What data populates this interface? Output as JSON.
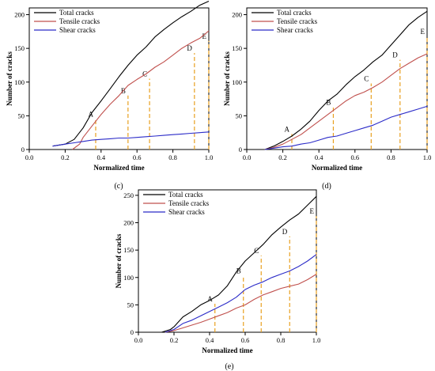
{
  "chart_data": [
    {
      "type": "line",
      "panel_label": "(c)",
      "xlabel": "Normalized time",
      "ylabel": "Number of cracks",
      "xlim": [
        0.0,
        1.0
      ],
      "ylim": [
        0,
        210
      ],
      "xticks": [
        "0.0",
        "0.2",
        "0.4",
        "0.6",
        "0.8",
        "1.0"
      ],
      "yticks": [
        "0",
        "50",
        "100",
        "150",
        "200"
      ],
      "legend_position": "top-left",
      "series": [
        {
          "name": "Total cracks",
          "color": "#000000",
          "x": [
            0.13,
            0.2,
            0.25,
            0.3,
            0.35,
            0.4,
            0.45,
            0.5,
            0.55,
            0.6,
            0.65,
            0.7,
            0.75,
            0.8,
            0.85,
            0.9,
            0.95,
            1.0
          ],
          "y": [
            5,
            8,
            15,
            32,
            55,
            72,
            90,
            108,
            125,
            140,
            152,
            167,
            178,
            188,
            197,
            205,
            214,
            220
          ]
        },
        {
          "name": "Tensile cracks",
          "color": "#c0504d",
          "x": [
            0.24,
            0.28,
            0.3,
            0.35,
            0.4,
            0.45,
            0.5,
            0.55,
            0.6,
            0.65,
            0.7,
            0.75,
            0.8,
            0.85,
            0.9,
            0.95,
            1.0
          ],
          "y": [
            0,
            8,
            18,
            35,
            52,
            67,
            80,
            95,
            104,
            112,
            122,
            130,
            140,
            150,
            158,
            165,
            176
          ]
        },
        {
          "name": "Shear cracks",
          "color": "#2b2bc8",
          "x": [
            0.13,
            0.2,
            0.25,
            0.3,
            0.35,
            0.4,
            0.45,
            0.5,
            0.55,
            0.6,
            0.65,
            0.7,
            0.75,
            0.8,
            0.85,
            0.9,
            0.95,
            1.0
          ],
          "y": [
            5,
            8,
            10,
            12,
            14,
            15,
            16,
            17,
            17,
            18,
            19,
            20,
            21,
            22,
            23,
            24,
            25,
            26
          ]
        }
      ],
      "markers": [
        {
          "label": "A",
          "x": 0.37,
          "y": 45
        },
        {
          "label": "B",
          "x": 0.55,
          "y": 80
        },
        {
          "label": "C",
          "x": 0.67,
          "y": 105
        },
        {
          "label": "D",
          "x": 0.92,
          "y": 143
        },
        {
          "label": "E",
          "x": 1.0,
          "y": 161
        }
      ]
    },
    {
      "type": "line",
      "panel_label": "(d)",
      "xlabel": "Normalized time",
      "ylabel": "Number of cracks",
      "xlim": [
        0.0,
        1.0
      ],
      "ylim": [
        0,
        210
      ],
      "xticks": [
        "0.0",
        "0.2",
        "0.4",
        "0.6",
        "0.8",
        "1.0"
      ],
      "yticks": [
        "0",
        "50",
        "100",
        "150",
        "200"
      ],
      "legend_position": "top-left",
      "series": [
        {
          "name": "Total cracks",
          "color": "#000000",
          "x": [
            0.1,
            0.15,
            0.2,
            0.25,
            0.3,
            0.35,
            0.4,
            0.45,
            0.5,
            0.55,
            0.6,
            0.65,
            0.7,
            0.75,
            0.8,
            0.85,
            0.9,
            0.95,
            1.0
          ],
          "y": [
            0,
            5,
            12,
            20,
            30,
            42,
            58,
            72,
            82,
            96,
            108,
            118,
            130,
            140,
            155,
            170,
            185,
            196,
            205
          ]
        },
        {
          "name": "Tensile cracks",
          "color": "#c0504d",
          "x": [
            0.1,
            0.15,
            0.2,
            0.25,
            0.3,
            0.35,
            0.4,
            0.45,
            0.5,
            0.55,
            0.6,
            0.65,
            0.7,
            0.75,
            0.8,
            0.85,
            0.9,
            0.95,
            1.0
          ],
          "y": [
            0,
            3,
            8,
            15,
            22,
            32,
            42,
            52,
            62,
            72,
            80,
            85,
            92,
            100,
            110,
            120,
            128,
            136,
            142
          ]
        },
        {
          "name": "Shear cracks",
          "color": "#2b2bc8",
          "x": [
            0.1,
            0.15,
            0.2,
            0.25,
            0.3,
            0.35,
            0.4,
            0.45,
            0.5,
            0.55,
            0.6,
            0.65,
            0.7,
            0.75,
            0.8,
            0.85,
            0.9,
            0.95,
            1.0
          ],
          "y": [
            0,
            2,
            4,
            5,
            8,
            10,
            14,
            18,
            20,
            24,
            28,
            32,
            36,
            42,
            48,
            52,
            56,
            60,
            64
          ]
        }
      ],
      "markers": [
        {
          "label": "A",
          "x": 0.25,
          "y": 23
        },
        {
          "label": "B",
          "x": 0.48,
          "y": 63
        },
        {
          "label": "C",
          "x": 0.69,
          "y": 98
        },
        {
          "label": "D",
          "x": 0.85,
          "y": 133
        },
        {
          "label": "E",
          "x": 1.0,
          "y": 168
        }
      ]
    },
    {
      "type": "line",
      "panel_label": "(e)",
      "xlabel": "Normalized time",
      "ylabel": "Number of cracks",
      "xlim": [
        0.0,
        1.0
      ],
      "ylim": [
        0,
        260
      ],
      "xticks": [
        "0.0",
        "0.2",
        "0.4",
        "0.6",
        "0.8",
        "1.0"
      ],
      "yticks": [
        "0",
        "50",
        "100",
        "150",
        "200",
        "250"
      ],
      "legend_position": "top-left",
      "series": [
        {
          "name": "Total cracks",
          "color": "#000000",
          "x": [
            0.13,
            0.18,
            0.2,
            0.25,
            0.3,
            0.35,
            0.4,
            0.45,
            0.5,
            0.55,
            0.6,
            0.65,
            0.7,
            0.75,
            0.8,
            0.85,
            0.9,
            0.95,
            1.0
          ],
          "y": [
            0,
            5,
            10,
            28,
            38,
            50,
            58,
            68,
            85,
            110,
            130,
            145,
            160,
            178,
            192,
            205,
            216,
            232,
            248
          ]
        },
        {
          "name": "Tensile cracks",
          "color": "#c0504d",
          "x": [
            0.15,
            0.2,
            0.25,
            0.3,
            0.35,
            0.4,
            0.45,
            0.5,
            0.55,
            0.6,
            0.65,
            0.7,
            0.75,
            0.8,
            0.85,
            0.9,
            0.95,
            1.0
          ],
          "y": [
            0,
            3,
            8,
            13,
            18,
            24,
            30,
            36,
            44,
            50,
            60,
            68,
            74,
            80,
            84,
            88,
            96,
            106
          ]
        },
        {
          "name": "Shear cracks",
          "color": "#2b2bc8",
          "x": [
            0.15,
            0.2,
            0.25,
            0.3,
            0.35,
            0.4,
            0.45,
            0.5,
            0.55,
            0.6,
            0.65,
            0.7,
            0.75,
            0.8,
            0.85,
            0.9,
            0.95,
            1.0
          ],
          "y": [
            0,
            5,
            16,
            22,
            30,
            38,
            46,
            54,
            64,
            78,
            86,
            92,
            100,
            106,
            112,
            120,
            130,
            142
          ]
        }
      ],
      "markers": [
        {
          "label": "A",
          "x": 0.43,
          "y": 52
        },
        {
          "label": "B",
          "x": 0.59,
          "y": 103
        },
        {
          "label": "C",
          "x": 0.69,
          "y": 140
        },
        {
          "label": "D",
          "x": 0.85,
          "y": 175
        },
        {
          "label": "E",
          "x": 1.0,
          "y": 212
        }
      ]
    }
  ]
}
